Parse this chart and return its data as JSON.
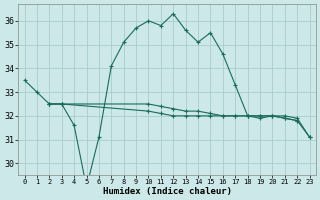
{
  "xlabel": "Humidex (Indice chaleur)",
  "x": [
    0,
    1,
    2,
    3,
    4,
    5,
    6,
    7,
    8,
    9,
    10,
    11,
    12,
    13,
    14,
    15,
    16,
    17,
    18,
    19,
    20,
    21,
    22,
    23
  ],
  "line_upper": [
    33.5,
    33.0,
    null,
    null,
    null,
    null,
    null,
    34.1,
    35.1,
    35.7,
    36.0,
    35.8,
    36.3,
    35.6,
    35.1,
    35.5,
    34.6,
    33.3,
    null,
    null,
    null,
    null,
    null,
    null
  ],
  "line_main": [
    33.5,
    33.0,
    32.5,
    32.5,
    31.6,
    29.0,
    31.1,
    34.1,
    35.1,
    35.7,
    36.0,
    35.8,
    36.3,
    35.6,
    35.1,
    35.5,
    34.6,
    33.3,
    32.0,
    31.9,
    32.0,
    31.9,
    31.8,
    null
  ],
  "line_flat1": [
    null,
    null,
    32.5,
    32.5,
    null,
    null,
    null,
    null,
    null,
    null,
    32.2,
    32.1,
    32.0,
    32.0,
    32.0,
    32.0,
    32.0,
    32.0,
    32.0,
    32.0,
    32.0,
    31.9,
    31.8,
    31.1
  ],
  "line_flat2": [
    null,
    null,
    32.5,
    32.5,
    null,
    null,
    null,
    null,
    null,
    null,
    32.5,
    32.4,
    32.3,
    32.2,
    32.2,
    32.1,
    32.0,
    32.0,
    32.0,
    32.0,
    32.0,
    32.0,
    31.9,
    31.1
  ],
  "ylim": [
    29.5,
    36.7
  ],
  "yticks": [
    30,
    31,
    32,
    33,
    34,
    35,
    36
  ],
  "xticks": [
    0,
    1,
    2,
    3,
    4,
    5,
    6,
    7,
    8,
    9,
    10,
    11,
    12,
    13,
    14,
    15,
    16,
    17,
    18,
    19,
    20,
    21,
    22,
    23
  ],
  "bg_color": "#cce8e8",
  "grid_color": "#aacccc",
  "line_color": "#1a6b5a",
  "axis_fontsize": 6.5,
  "tick_fontsize": 6.0
}
